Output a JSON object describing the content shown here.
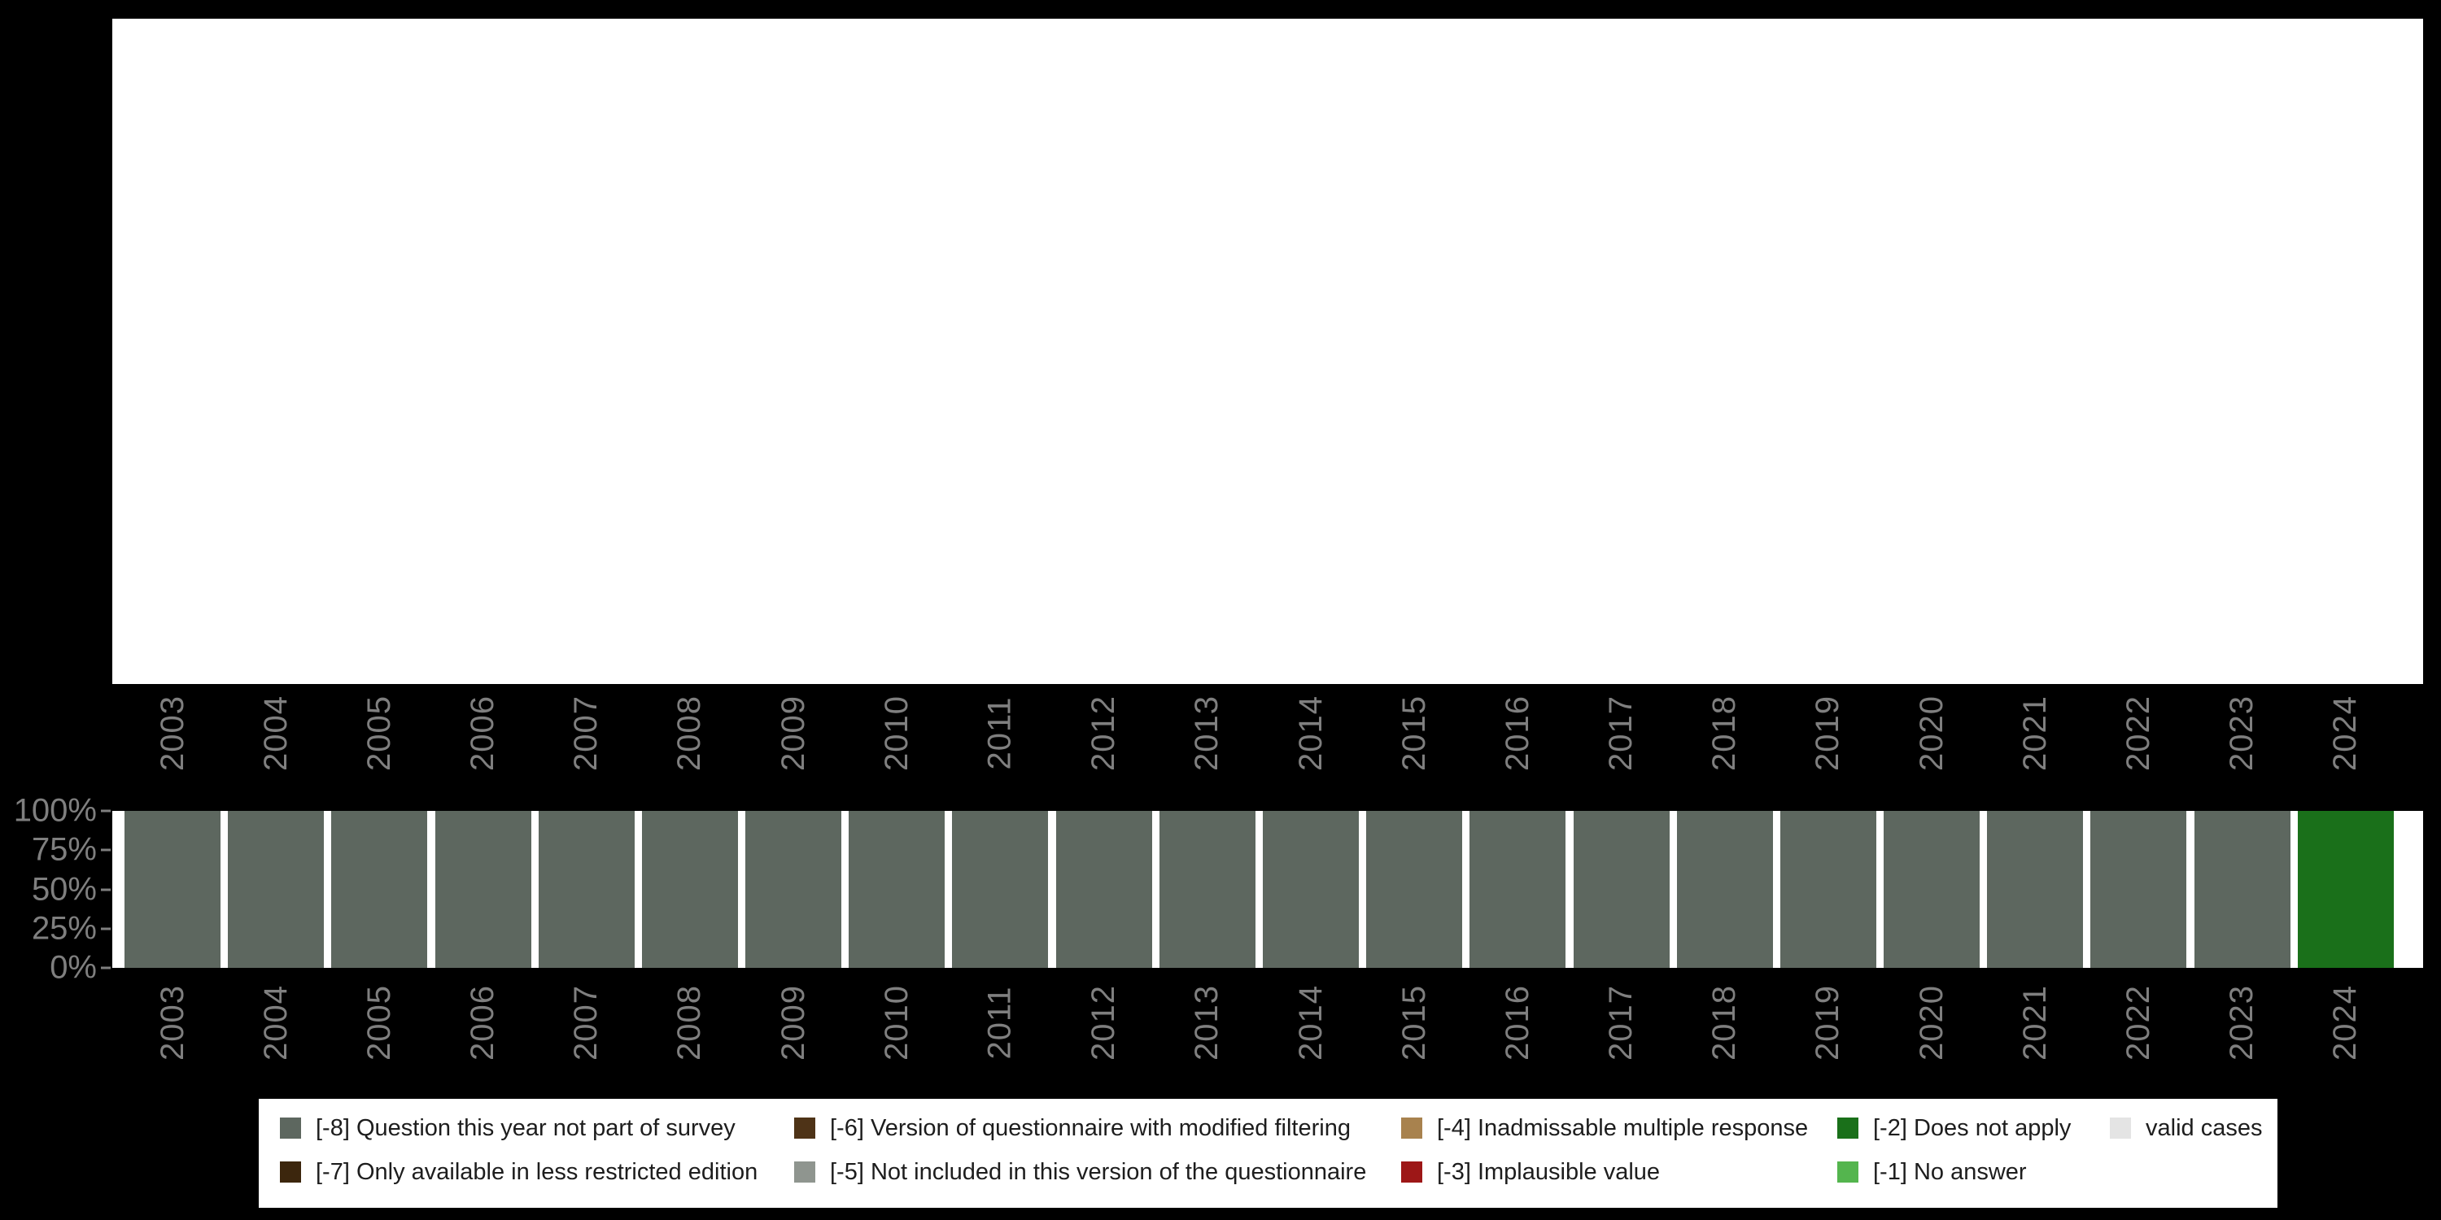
{
  "colors": {
    "page_background": "#000000",
    "plot_background": "#ffffff",
    "axis_label": "#7f7f7f",
    "legend_background": "#ffffff",
    "legend_text": "#1d1d1d"
  },
  "chart_data": {
    "type": "bar",
    "stacked": true,
    "title": "",
    "xlabel": "",
    "ylabel": "",
    "ylim": [
      0,
      100
    ],
    "legend_position": "bottom",
    "categories": [
      "2003",
      "2004",
      "2005",
      "2006",
      "2007",
      "2008",
      "2009",
      "2010",
      "2011",
      "2012",
      "2013",
      "2014",
      "2015",
      "2016",
      "2017",
      "2018",
      "2019",
      "2020",
      "2021",
      "2022",
      "2023",
      "2024"
    ],
    "y_ticks": [
      {
        "label": "100%",
        "value": 100
      },
      {
        "label": "75%",
        "value": 75
      },
      {
        "label": "50%",
        "value": 50
      },
      {
        "label": "25%",
        "value": 25
      },
      {
        "label": "0%",
        "value": 0
      }
    ],
    "series": [
      {
        "name": "[-8] Question this year not part of survey",
        "color": "#5d675f",
        "values": [
          100,
          100,
          100,
          100,
          100,
          100,
          100,
          100,
          100,
          100,
          100,
          100,
          100,
          100,
          100,
          100,
          100,
          100,
          100,
          100,
          100,
          0
        ]
      },
      {
        "name": "[-2] Does not apply",
        "color": "#1a701a",
        "values": [
          0,
          0,
          0,
          0,
          0,
          0,
          0,
          0,
          0,
          0,
          0,
          0,
          0,
          0,
          0,
          0,
          0,
          0,
          0,
          0,
          0,
          100
        ]
      }
    ]
  },
  "legend": {
    "rows": [
      [
        {
          "label": "[-8] Question this year not part of survey",
          "color": "#5d675f"
        },
        {
          "label": "[-6] Version of questionnaire with modified filtering",
          "color": "#4e3317"
        },
        {
          "label": "[-4] Inadmissable multiple response",
          "color": "#a8824e"
        },
        {
          "label": "[-2] Does not apply",
          "color": "#1a701a"
        },
        {
          "label": "valid cases",
          "color": "#e4e4e4"
        }
      ],
      [
        {
          "label": "[-7] Only available in less restricted edition",
          "color": "#3c260d"
        },
        {
          "label": "[-5] Not included in this version of the questionnaire",
          "color": "#8f958f"
        },
        {
          "label": "[-3] Implausible value",
          "color": "#9d1717"
        },
        {
          "label": "[-1] No answer",
          "color": "#54b54e"
        }
      ]
    ]
  }
}
